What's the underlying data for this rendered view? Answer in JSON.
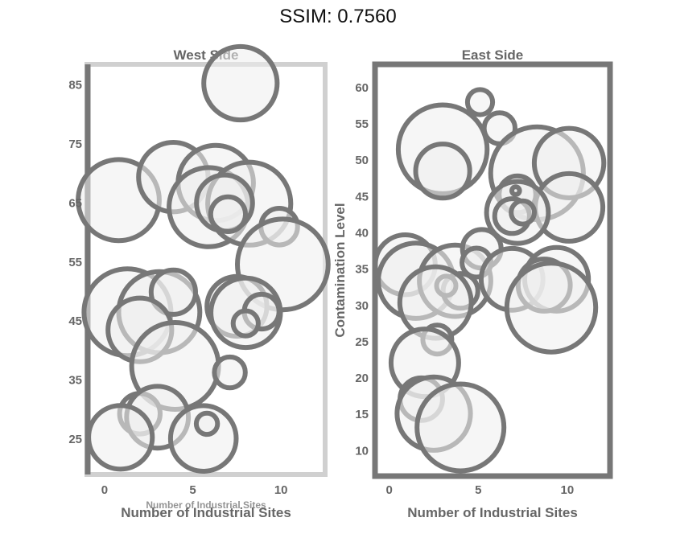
{
  "header": {
    "title": "SSIM: 0.7560"
  },
  "chart_data": [
    {
      "type": "scatter",
      "title": "West Side",
      "xlabel": "Number of Industrial Sites",
      "xlabel_secondary": "Number of Industrial Sites",
      "ylabel": "",
      "xlim": [
        -1,
        12.5
      ],
      "ylim": [
        19,
        88.5
      ],
      "xticks": [
        0,
        5,
        10
      ],
      "yticks": [
        25,
        35,
        45,
        55,
        65,
        75,
        85
      ],
      "points": [
        {
          "x": 7.7,
          "y": 85.3,
          "size": 3.8
        },
        {
          "x": 0.8,
          "y": 65.5,
          "size": 4.2
        },
        {
          "x": 3.9,
          "y": 69.4,
          "size": 3.6
        },
        {
          "x": 6.3,
          "y": 68.4,
          "size": 3.9
        },
        {
          "x": 5.9,
          "y": 64.3,
          "size": 4.1
        },
        {
          "x": 8.2,
          "y": 64.9,
          "size": 4.3
        },
        {
          "x": 6.8,
          "y": 65.0,
          "size": 2.9
        },
        {
          "x": 7.0,
          "y": 63.1,
          "size": 1.8
        },
        {
          "x": 9.9,
          "y": 61.0,
          "size": 1.9
        },
        {
          "x": 10.1,
          "y": 54.6,
          "size": 4.7
        },
        {
          "x": 1.3,
          "y": 46.5,
          "size": 4.5
        },
        {
          "x": 3.1,
          "y": 46.5,
          "size": 4.2
        },
        {
          "x": 3.9,
          "y": 49.9,
          "size": 2.3
        },
        {
          "x": 2.0,
          "y": 43.5,
          "size": 3.3
        },
        {
          "x": 7.5,
          "y": 47.5,
          "size": 3.1
        },
        {
          "x": 8.0,
          "y": 46.4,
          "size": 3.6
        },
        {
          "x": 8.9,
          "y": 46.6,
          "size": 1.8
        },
        {
          "x": 8.0,
          "y": 44.6,
          "size": 1.3
        },
        {
          "x": 4.0,
          "y": 37.4,
          "size": 4.5
        },
        {
          "x": 7.1,
          "y": 36.3,
          "size": 1.6
        },
        {
          "x": 2.0,
          "y": 29.3,
          "size": 2.1
        },
        {
          "x": 3.0,
          "y": 28.7,
          "size": 3.2
        },
        {
          "x": 0.9,
          "y": 25.3,
          "size": 3.3
        },
        {
          "x": 5.6,
          "y": 25.1,
          "size": 3.4
        },
        {
          "x": 5.8,
          "y": 27.6,
          "size": 1.1
        }
      ]
    },
    {
      "type": "scatter",
      "title": "East Side",
      "xlabel": "Number of Industrial Sites",
      "ylabel": "Contamination Level",
      "xlim": [
        -0.8,
        12.4
      ],
      "ylim": [
        6.5,
        63.2
      ],
      "xticks": [
        0,
        5,
        10
      ],
      "yticks": [
        10,
        15,
        20,
        25,
        30,
        35,
        40,
        45,
        50,
        55,
        60
      ],
      "points": [
        {
          "x": 3.0,
          "y": 51.5,
          "size": 4.6
        },
        {
          "x": 5.1,
          "y": 58.0,
          "size": 1.3
        },
        {
          "x": 6.2,
          "y": 54.4,
          "size": 1.6
        },
        {
          "x": 3.0,
          "y": 48.5,
          "size": 2.8
        },
        {
          "x": 8.3,
          "y": 48.2,
          "size": 4.8
        },
        {
          "x": 10.1,
          "y": 49.6,
          "size": 3.6
        },
        {
          "x": 7.2,
          "y": 45.3,
          "size": 1.9
        },
        {
          "x": 10.1,
          "y": 43.5,
          "size": 3.5
        },
        {
          "x": 7.2,
          "y": 42.8,
          "size": 3.2
        },
        {
          "x": 6.9,
          "y": 42.3,
          "size": 1.8
        },
        {
          "x": 7.5,
          "y": 42.8,
          "size": 1.2
        },
        {
          "x": 7.1,
          "y": 45.8,
          "size": 0.4
        },
        {
          "x": 0.9,
          "y": 35.6,
          "size": 3.1
        },
        {
          "x": 1.5,
          "y": 33.4,
          "size": 3.9
        },
        {
          "x": 3.7,
          "y": 33.4,
          "size": 3.7
        },
        {
          "x": 5.2,
          "y": 37.8,
          "size": 2.0
        },
        {
          "x": 4.9,
          "y": 35.9,
          "size": 1.5
        },
        {
          "x": 6.9,
          "y": 33.6,
          "size": 3.2
        },
        {
          "x": 9.4,
          "y": 33.6,
          "size": 3.3
        },
        {
          "x": 8.7,
          "y": 32.8,
          "size": 2.7
        },
        {
          "x": 9.1,
          "y": 29.7,
          "size": 4.6
        },
        {
          "x": 4.0,
          "y": 32.0,
          "size": 1.8
        },
        {
          "x": 3.2,
          "y": 32.7,
          "size": 1.0
        },
        {
          "x": 2.6,
          "y": 30.4,
          "size": 3.7
        },
        {
          "x": 2.7,
          "y": 25.3,
          "size": 1.5
        },
        {
          "x": 2.0,
          "y": 22.1,
          "size": 3.5
        },
        {
          "x": 1.8,
          "y": 17.1,
          "size": 2.2
        },
        {
          "x": 2.5,
          "y": 15.1,
          "size": 3.8
        },
        {
          "x": 4.0,
          "y": 13.2,
          "size": 4.5
        }
      ]
    }
  ]
}
